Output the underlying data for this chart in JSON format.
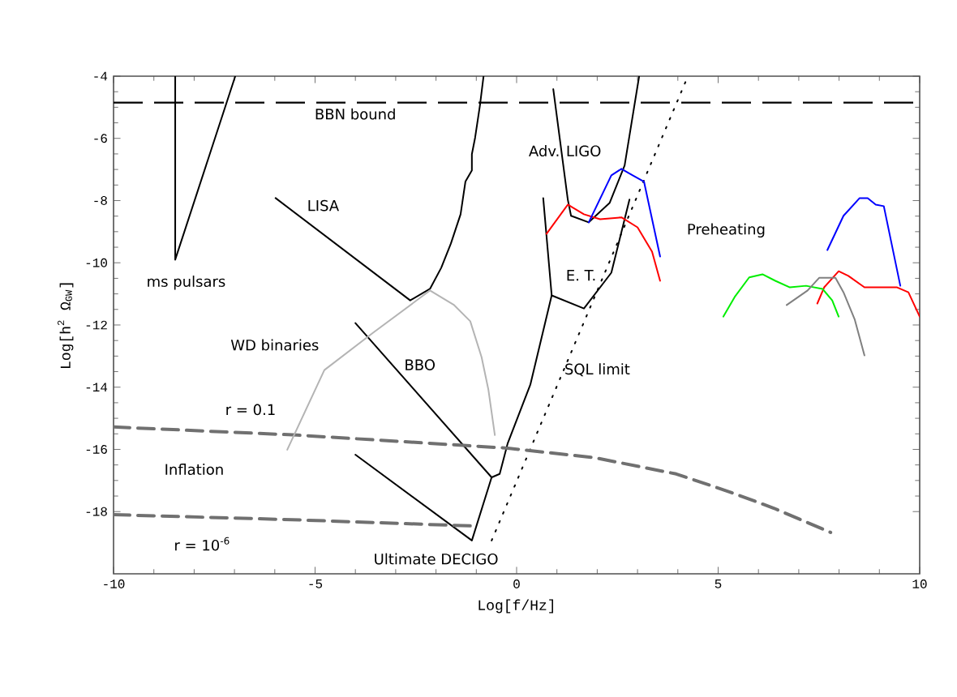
{
  "chart_data": {
    "type": "line",
    "xlabel": "Log[f/Hz]",
    "ylabel": "Log[h$^{2}$ Ω$_{GW}$]",
    "xlim": [
      -10,
      10
    ],
    "ylim": [
      -20,
      -4
    ],
    "xticks": [
      -10,
      -5,
      0,
      5,
      10
    ],
    "yticks": [
      -4,
      -6,
      -8,
      -10,
      -12,
      -14,
      -16,
      -18
    ],
    "ref_lines": [
      {
        "axis": "y",
        "value": -4.85,
        "label": "BBN bound",
        "color": "#000000",
        "line_style": "dashed"
      }
    ],
    "series": [
      {
        "color": "#000000",
        "line_style": "solid",
        "x": [
          -8.47,
          -8.47,
          -6.98
        ],
        "values": [
          -4,
          -9.9,
          -4
        ]
      },
      {
        "color": "#000000",
        "line_style": "solid",
        "x": [
          -5.98,
          -2.64,
          -2.15,
          -1.87,
          -1.63,
          -1.39,
          -1.27,
          -1.11,
          -1.11,
          -1.03,
          -0.91,
          -0.82
        ],
        "values": [
          -7.92,
          -11.21,
          -10.84,
          -10.16,
          -9.38,
          -8.44,
          -7.39,
          -7.03,
          -6.51,
          -5.98,
          -4.94,
          -4.0
        ]
      },
      {
        "color": "#000000",
        "line_style": "solid",
        "x": [
          -4.0,
          -0.62,
          -0.42,
          -0.22,
          0.34,
          0.87
        ],
        "values": [
          -11.94,
          -16.9,
          -16.79,
          -15.8,
          -13.92,
          -11.05
        ]
      },
      {
        "color": "#000000",
        "line_style": "solid",
        "x": [
          -4.0,
          -1.11,
          -0.62
        ],
        "values": [
          -16.17,
          -18.93,
          -16.9
        ]
      },
      {
        "color": "#000000",
        "line_style": "solid",
        "x": [
          0.66,
          0.87,
          1.67,
          2.35,
          2.8
        ],
        "values": [
          -7.92,
          -11.05,
          -11.47,
          -10.32,
          -7.97
        ]
      },
      {
        "color": "#000000",
        "line_style": "solid",
        "x": [
          0.91,
          1.27,
          1.35,
          1.79,
          2.31,
          2.68,
          3.04
        ],
        "values": [
          -4.42,
          -7.97,
          -8.49,
          -8.7,
          -8.07,
          -6.87,
          -4.0
        ]
      },
      {
        "color": "#000000",
        "line_style": "dotted",
        "x": [
          -0.62,
          4.25
        ],
        "values": [
          -18.93,
          -4.0
        ]
      },
      {
        "color": "#707070",
        "line_style": "dashed",
        "x": [
          -10.0,
          -5.45,
          -0.22,
          1.95,
          3.96,
          5.29,
          6.38,
          7.79
        ],
        "values": [
          -15.28,
          -15.54,
          -15.96,
          -16.27,
          -16.79,
          -17.37,
          -17.89,
          -18.67
        ]
      },
      {
        "color": "#707070",
        "line_style": "dashed",
        "x": [
          -10.0,
          -5.57,
          -1.15
        ],
        "values": [
          -18.1,
          -18.26,
          -18.46
        ]
      },
      {
        "color": "#b4b4b4",
        "line_style": "solid",
        "x": [
          -5.69,
          -4.77,
          -3.56,
          -2.15,
          -1.55,
          -1.15,
          -0.87,
          -0.7,
          -0.54
        ],
        "values": [
          -16.01,
          -13.45,
          -12.25,
          -10.89,
          -11.36,
          -11.88,
          -13.03,
          -14.08,
          -15.54
        ]
      },
      {
        "color": "#ff0000",
        "line_style": "solid",
        "x": [
          0.74,
          1.27,
          1.67,
          2.07,
          2.6,
          3.0,
          3.36,
          3.56
        ],
        "values": [
          -9.07,
          -8.13,
          -8.44,
          -8.6,
          -8.54,
          -8.86,
          -9.64,
          -10.58
        ]
      },
      {
        "color": "#0000ff",
        "line_style": "solid",
        "x": [
          1.79,
          2.35,
          2.6,
          2.88,
          3.16,
          3.56
        ],
        "values": [
          -8.7,
          -7.19,
          -6.98,
          -7.19,
          -7.39,
          -9.8
        ]
      },
      {
        "color": "#0000ff",
        "line_style": "solid",
        "x": [
          7.71,
          8.11,
          8.51,
          8.71,
          8.91,
          9.11,
          9.52
        ],
        "values": [
          -9.59,
          -8.49,
          -7.92,
          -7.92,
          -8.13,
          -8.18,
          -10.74
        ]
      },
      {
        "color": "#ff0000",
        "line_style": "solid",
        "x": [
          7.46,
          7.63,
          7.99,
          8.23,
          8.63,
          9.03,
          9.44,
          9.72,
          10.0
        ],
        "values": [
          -11.31,
          -10.79,
          -10.27,
          -10.42,
          -10.79,
          -10.79,
          -10.79,
          -10.95,
          -11.73
        ]
      },
      {
        "color": "#00ee00",
        "line_style": "solid",
        "x": [
          5.13,
          5.41,
          5.77,
          6.1,
          6.42,
          6.78,
          7.18,
          7.59,
          7.83,
          7.99
        ],
        "values": [
          -11.73,
          -11.1,
          -10.47,
          -10.37,
          -10.58,
          -10.79,
          -10.74,
          -10.84,
          -11.21,
          -11.73
        ]
      },
      {
        "color": "#808080",
        "line_style": "solid",
        "x": [
          6.7,
          7.22,
          7.51,
          7.91,
          8.11,
          8.39,
          8.63
        ],
        "values": [
          -11.36,
          -10.89,
          -10.48,
          -10.48,
          -10.95,
          -11.83,
          -12.98
        ]
      }
    ],
    "annotations": [
      "ms pulsars",
      "LISA",
      "WD binaries",
      "BBO",
      "r = 0.1",
      "Inflation",
      "r = 10$^{-6}$",
      "Ultimate DECIGO",
      "Adv. LIGO",
      "E. T.",
      "SQL limit",
      "Preheating"
    ]
  }
}
